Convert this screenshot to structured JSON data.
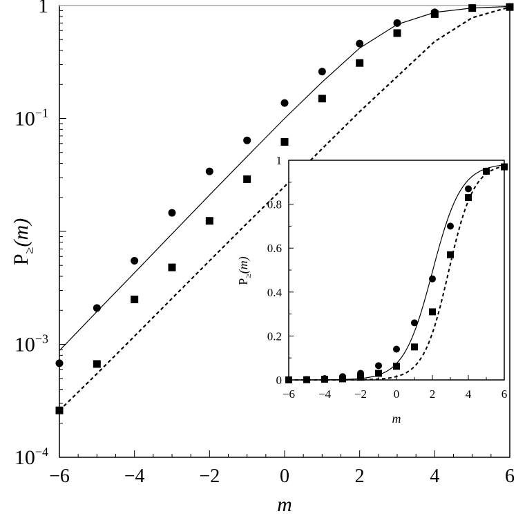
{
  "chart_data": [
    {
      "type": "scatter",
      "role": "main",
      "xlabel": "m",
      "ylabel_main": "P",
      "ylabel_sub": "≥",
      "ylabel_arg": "(m)",
      "xlim": [
        -6,
        6
      ],
      "ylim": [
        0.0001,
        1
      ],
      "yscale": "log",
      "x_ticks": [
        -6,
        -4,
        -2,
        0,
        2,
        4,
        6
      ],
      "x_tick_labels": [
        "−6",
        "−4",
        "−2",
        "0",
        "2",
        "4",
        "6"
      ],
      "y_ticks": [
        {
          "value": 1,
          "base": "1",
          "exp": ""
        },
        {
          "value": 0.1,
          "base": "10",
          "exp": "-1"
        },
        {
          "value": 0.001,
          "base": "10",
          "exp": "-3"
        },
        {
          "value": 0.0001,
          "base": "10",
          "exp": "-4"
        }
      ],
      "grid": false,
      "series": [
        {
          "marker": "circle",
          "line": "solid",
          "x": [
            -6,
            -5,
            -4,
            -3,
            -2,
            -1,
            0,
            1,
            2,
            3,
            4,
            5,
            6
          ],
          "y": [
            0.00068,
            0.0021,
            0.0055,
            0.0146,
            0.034,
            0.064,
            0.137,
            0.26,
            0.46,
            0.7,
            0.87,
            0.95,
            0.97
          ],
          "fit": [
            [
              -6,
              0.00088
            ],
            [
              -5,
              0.00195
            ],
            [
              -4,
              0.0043
            ],
            [
              -3,
              0.0095
            ],
            [
              -2,
              0.021
            ],
            [
              -1,
              0.046
            ],
            [
              0,
              0.1
            ],
            [
              1,
              0.21
            ],
            [
              2,
              0.42
            ],
            [
              3,
              0.68
            ],
            [
              4,
              0.87
            ],
            [
              5,
              0.95
            ],
            [
              6,
              0.98
            ]
          ]
        },
        {
          "marker": "square",
          "line": "dashed",
          "x": [
            -6,
            -5,
            -4,
            -3,
            -2,
            -1,
            0,
            1,
            2,
            3,
            4,
            5,
            6
          ],
          "y": [
            0.00026,
            0.00067,
            0.0025,
            0.0048,
            0.0124,
            0.029,
            0.062,
            0.15,
            0.31,
            0.57,
            0.84,
            0.95,
            0.97
          ],
          "fit": [
            [
              -6,
              0.00026
            ],
            [
              -5,
              0.00055
            ],
            [
              -4,
              0.00118
            ],
            [
              -3,
              0.00255
            ],
            [
              -2,
              0.0055
            ],
            [
              -1,
              0.0118
            ],
            [
              0,
              0.025
            ],
            [
              1,
              0.054
            ],
            [
              2,
              0.115
            ],
            [
              3,
              0.235
            ],
            [
              4,
              0.48
            ],
            [
              5,
              0.78
            ],
            [
              6,
              0.97
            ]
          ]
        }
      ]
    },
    {
      "type": "scatter",
      "role": "inset",
      "xlabel": "m",
      "ylabel_main": "P",
      "ylabel_sub": "≥",
      "ylabel_arg": "(m)",
      "xlim": [
        -6,
        6
      ],
      "ylim": [
        0,
        1
      ],
      "x_ticks": [
        -6,
        -4,
        -2,
        0,
        2,
        4,
        6
      ],
      "x_tick_labels": [
        "−6",
        "−4",
        "−2",
        "0",
        "2",
        "4",
        "6"
      ],
      "y_ticks": [
        0,
        0.2,
        0.4,
        0.6,
        0.8,
        1
      ],
      "y_tick_labels": [
        "0",
        "0.2",
        "0.4",
        "0.6",
        "0.8",
        "1"
      ],
      "grid": false,
      "series": [
        {
          "marker": "circle",
          "line": "solid",
          "x": [
            -6,
            -5,
            -4,
            -3,
            -2,
            -1,
            0,
            1,
            2,
            3,
            4,
            5,
            6
          ],
          "y": [
            0.001,
            0.002,
            0.006,
            0.015,
            0.03,
            0.065,
            0.14,
            0.26,
            0.46,
            0.7,
            0.87,
            0.95,
            0.97
          ]
        },
        {
          "marker": "square",
          "line": "dashed",
          "x": [
            -6,
            -5,
            -4,
            -3,
            -2,
            -1,
            0,
            1,
            2,
            3,
            4,
            5,
            6
          ],
          "y": [
            0.0003,
            0.001,
            0.003,
            0.005,
            0.012,
            0.03,
            0.062,
            0.15,
            0.31,
            0.57,
            0.83,
            0.95,
            0.97
          ]
        }
      ]
    }
  ]
}
